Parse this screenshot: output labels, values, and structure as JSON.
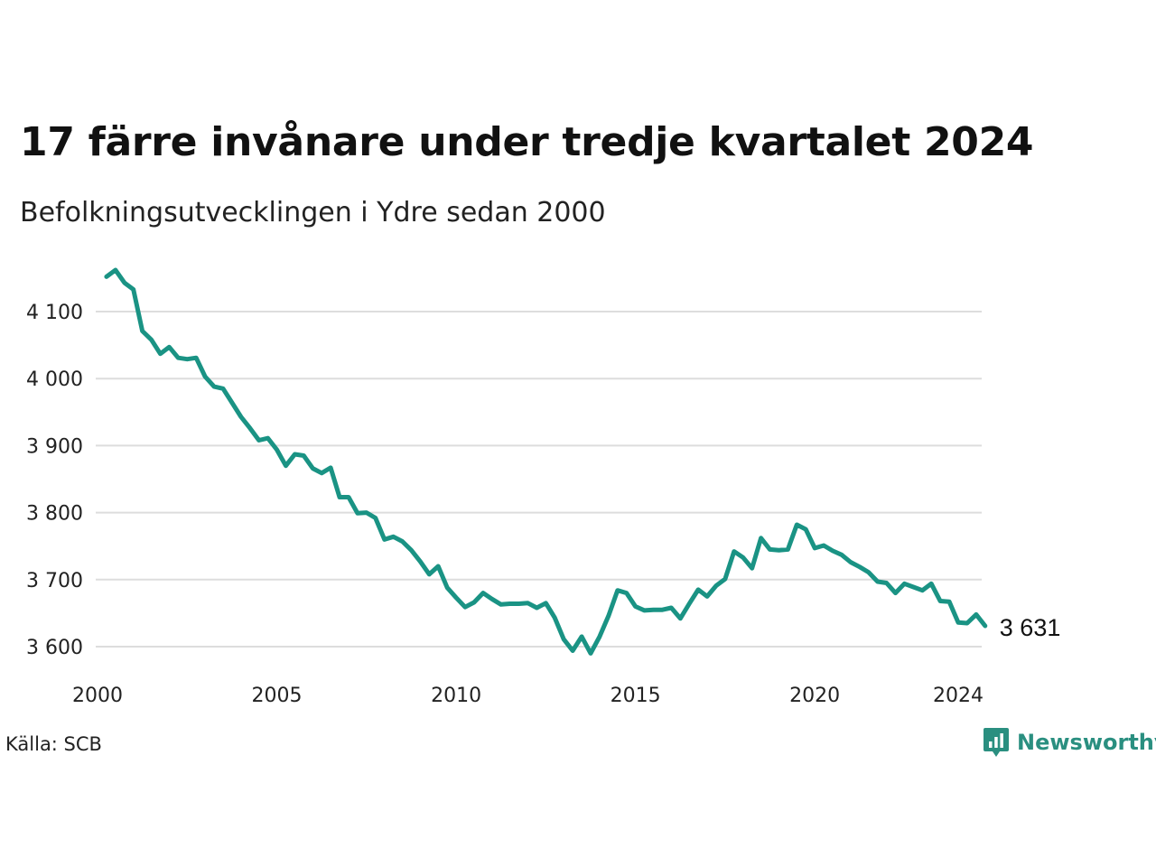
{
  "header": {
    "title": "17 färre invånare under tredje kvartalet 2024",
    "subtitle": "Befolkningsutvecklingen i Ydre sedan 2000"
  },
  "footer": {
    "source": "Källa: SCB",
    "brand": "Newsworthy",
    "brand_icon": "newsworthy-logo-icon"
  },
  "colors": {
    "line": "#1a9384",
    "grid": "#dddddd",
    "brand": "#2a8f80"
  },
  "chart_data": {
    "type": "line",
    "title": "17 färre invånare under tredje kvartalet 2024",
    "subtitle": "Befolkningsutvecklingen i Ydre sedan 2000",
    "xlabel": "",
    "ylabel": "",
    "xlim": [
      2000,
      2024.75
    ],
    "ylim": [
      3575,
      4165
    ],
    "grid": true,
    "x_ticks": [
      2000,
      2005,
      2010,
      2015,
      2020,
      2024
    ],
    "x_tick_labels": [
      "2000",
      "2005",
      "2010",
      "2015",
      "2020",
      "2024"
    ],
    "y_ticks": [
      3600,
      3700,
      3800,
      3900,
      4000,
      4100
    ],
    "y_tick_labels": [
      "3 600",
      "3 700",
      "3 800",
      "3 900",
      "4 000",
      "4 100"
    ],
    "end_label": "3 631",
    "series": [
      {
        "x": [
          2000.25,
          2000.5,
          2000.75,
          2001.0,
          2001.25,
          2001.5,
          2001.75,
          2002.0,
          2002.25,
          2002.5,
          2002.75,
          2003.0,
          2003.25,
          2003.5,
          2003.75,
          2004.0,
          2004.25,
          2004.5,
          2004.75,
          2005.0,
          2005.25,
          2005.5,
          2005.75,
          2006.0,
          2006.25,
          2006.5,
          2006.75,
          2007.0,
          2007.25,
          2007.5,
          2007.75,
          2008.0,
          2008.25,
          2008.5,
          2008.75,
          2009.0,
          2009.25,
          2009.5,
          2009.75,
          2010.0,
          2010.25,
          2010.5,
          2010.75,
          2011.0,
          2011.25,
          2011.5,
          2011.75,
          2012.0,
          2012.25,
          2012.5,
          2012.75,
          2013.0,
          2013.25,
          2013.5,
          2013.75,
          2014.0,
          2014.25,
          2014.5,
          2014.75,
          2015.0,
          2015.25,
          2015.5,
          2015.75,
          2016.0,
          2016.25,
          2016.5,
          2016.75,
          2017.0,
          2017.25,
          2017.5,
          2017.75,
          2018.0,
          2018.25,
          2018.5,
          2018.75,
          2019.0,
          2019.25,
          2019.5,
          2019.75,
          2020.0,
          2020.25,
          2020.5,
          2020.75,
          2021.0,
          2021.25,
          2021.5,
          2021.75,
          2022.0,
          2022.25,
          2022.5,
          2022.75,
          2023.0,
          2023.25,
          2023.5,
          2023.75,
          2024.0,
          2024.25,
          2024.5,
          2024.75
        ],
        "values": [
          4152,
          4162,
          4143,
          4133,
          4071,
          4058,
          4037,
          4047,
          4031,
          4029,
          4031,
          4003,
          3988,
          3985,
          3964,
          3943,
          3926,
          3908,
          3911,
          3894,
          3870,
          3887,
          3885,
          3866,
          3859,
          3867,
          3823,
          3823,
          3799,
          3800,
          3792,
          3760,
          3764,
          3757,
          3744,
          3727,
          3708,
          3720,
          3688,
          3673,
          3659,
          3666,
          3680,
          3671,
          3663,
          3664,
          3664,
          3665,
          3658,
          3665,
          3643,
          3611,
          3594,
          3615,
          3590,
          3615,
          3646,
          3684,
          3680,
          3660,
          3654,
          3655,
          3655,
          3658,
          3642,
          3664,
          3685,
          3675,
          3691,
          3701,
          3742,
          3733,
          3717,
          3762,
          3745,
          3744,
          3745,
          3782,
          3775,
          3747,
          3751,
          3743,
          3737,
          3726,
          3719,
          3711,
          3697,
          3695,
          3680,
          3694,
          3689,
          3684,
          3694,
          3668,
          3667,
          3636,
          3635,
          3648,
          3631
        ]
      }
    ]
  }
}
